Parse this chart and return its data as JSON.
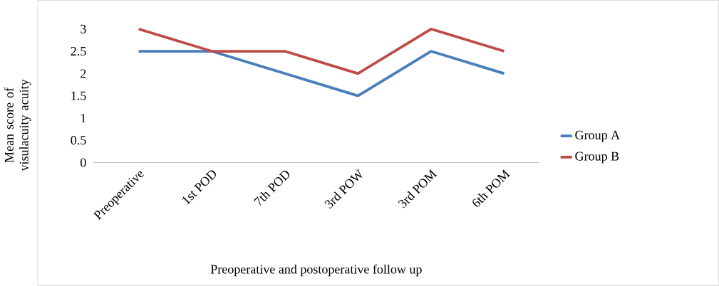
{
  "chart_data": {
    "type": "line",
    "xlabel": "Preoperative and postoperative follow up",
    "ylabel": "Mean score of visulacuity acuity",
    "categories": [
      "Preoperative",
      "1st POD",
      "7th POD",
      "3rd POW",
      "3rd POM",
      "6th POM"
    ],
    "series": [
      {
        "name": "Group A",
        "color": "#4a7ebb",
        "values": [
          2.5,
          2.5,
          2,
          1.5,
          2.5,
          2
        ]
      },
      {
        "name": "Group B",
        "color": "#be4b48",
        "values": [
          3,
          2.5,
          2.5,
          2,
          3,
          2.5
        ]
      }
    ],
    "ylim": [
      0,
      3
    ],
    "yticks": [
      0,
      0.5,
      1,
      1.5,
      2,
      2.5,
      3
    ],
    "grid": false,
    "legend": "right",
    "marker": "none",
    "line_style": "solid"
  }
}
